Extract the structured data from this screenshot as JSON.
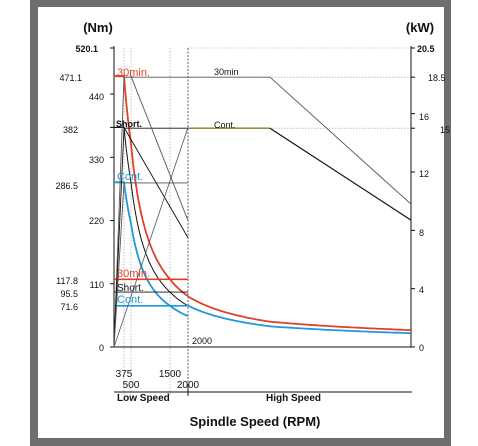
{
  "chart_data": {
    "type": "line",
    "title": "",
    "xlabel": "Spindle Speed (RPM)",
    "y_left_label": "(Nm)",
    "y_right_label": "(kW)",
    "ylim_left": [
      0,
      520.1
    ],
    "ylim_right": [
      0,
      20.5
    ],
    "x_ticks": [
      "375",
      "500",
      "1500",
      "2000"
    ],
    "left_ticks": [
      "520.1",
      "471.1",
      "440",
      "382",
      "330",
      "286.5",
      "220",
      "117.8",
      "110",
      "95.5",
      "71.6",
      "0"
    ],
    "right_ticks": [
      "20.5",
      "18.5",
      "16",
      "15",
      "12",
      "8",
      "4",
      "0"
    ],
    "ranges": [
      "Low Speed",
      "High Speed"
    ],
    "corner_label": "2000",
    "torque_low": [
      {
        "name": "30min.",
        "x": [
          375,
          500,
          1500,
          2000
        ],
        "y": [
          471.1,
          353,
          118,
          88
        ]
      },
      {
        "name": "Short.",
        "x": [
          375,
          500,
          1500,
          2000
        ],
        "y": [
          382,
          287,
          95.5,
          72
        ]
      },
      {
        "name": "Cont.",
        "x": [
          375,
          500,
          1500,
          2000
        ],
        "y": [
          286.5,
          215,
          72,
          54
        ]
      }
    ],
    "torque_high": [
      {
        "name": "30min.",
        "x": [
          2000,
          4000,
          6000
        ],
        "y": [
          88,
          44,
          22
        ]
      },
      {
        "name": "Cont.",
        "x": [
          2000,
          4000,
          6000
        ],
        "y": [
          72,
          36,
          18
        ]
      }
    ],
    "power_low": [
      {
        "name": "30min",
        "x": [
          0,
          375,
          500,
          1500,
          2000
        ],
        "y": [
          0,
          18.5,
          18.5,
          18.5,
          18.5
        ]
      },
      {
        "name": "Short.",
        "x": [
          0,
          375,
          500,
          1500,
          2000
        ],
        "y": [
          0,
          15,
          15,
          15,
          15
        ]
      },
      {
        "name": "Cont.",
        "x": [
          0,
          375,
          500,
          1500,
          2000
        ],
        "y": [
          0,
          11.25,
          11.25,
          11.25,
          11.25
        ]
      }
    ],
    "power_high": [
      {
        "name": "30min",
        "x": [
          2000,
          4000,
          6000
        ],
        "y": [
          18.5,
          18.5,
          9.8
        ]
      },
      {
        "name": "Cont.",
        "x": [
          2000,
          4000,
          6000
        ],
        "y": [
          15,
          15,
          8.7
        ]
      }
    ],
    "labels_upper": {
      "m30": "30min.",
      "short": "Short.",
      "cont": "Cont."
    },
    "labels_lower": {
      "m30": "30min.",
      "short": "Short.",
      "cont": "Cont."
    },
    "labels_power": {
      "m30": "30min",
      "cont": "Cont."
    },
    "colors": {
      "m30": "#e0402a",
      "short": "#111111",
      "cont": "#1e9ad6",
      "grid": "#9a9a9a",
      "power_line": "#555555",
      "power_cont": "#8a7a1a"
    }
  }
}
